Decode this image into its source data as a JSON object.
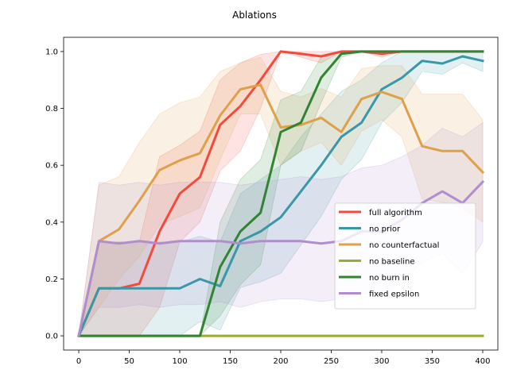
{
  "chart_data": {
    "type": "line",
    "title": "Ablations",
    "xlabel": "",
    "ylabel": "",
    "xlim": [
      -15,
      415
    ],
    "ylim": [
      -0.05,
      1.05
    ],
    "xticks": [
      0,
      50,
      100,
      150,
      200,
      250,
      300,
      350,
      400
    ],
    "yticks": [
      0.0,
      0.2,
      0.4,
      0.6,
      0.8,
      1.0
    ],
    "xtick_labels": [
      "0",
      "50",
      "100",
      "150",
      "200",
      "250",
      "300",
      "350",
      "400"
    ],
    "ytick_labels": [
      "0.0",
      "0.2",
      "0.4",
      "0.6",
      "0.8",
      "1.0"
    ],
    "grid": false,
    "legend_position": "center-right",
    "x": [
      0,
      20,
      40,
      60,
      80,
      100,
      120,
      140,
      160,
      180,
      200,
      220,
      240,
      260,
      280,
      300,
      320,
      340,
      360,
      380,
      400
    ],
    "series": [
      {
        "name": "full algorithm",
        "color": "#f44a3c",
        "values": [
          0.0,
          0.167,
          0.167,
          0.183,
          0.367,
          0.5,
          0.558,
          0.742,
          0.808,
          0.9,
          1.0,
          0.992,
          0.983,
          1.0,
          1.0,
          0.992,
          1.0,
          1.0,
          1.0,
          1.0,
          1.0
        ],
        "lower": [
          0.0,
          0.0,
          0.0,
          0.0,
          0.1,
          0.33,
          0.4,
          0.58,
          0.65,
          0.8,
          1.0,
          0.98,
          0.96,
          1.0,
          1.0,
          0.98,
          1.0,
          1.0,
          1.0,
          1.0,
          1.0
        ],
        "upper": [
          0.0,
          0.33,
          0.33,
          0.33,
          0.63,
          0.67,
          0.72,
          0.9,
          0.96,
          0.99,
          1.0,
          1.0,
          1.0,
          1.0,
          1.0,
          1.0,
          1.0,
          1.0,
          1.0,
          1.0,
          1.0
        ]
      },
      {
        "name": "no prior",
        "color": "#3a97a8",
        "values": [
          0.0,
          0.167,
          0.167,
          0.167,
          0.167,
          0.167,
          0.2,
          0.175,
          0.333,
          0.367,
          0.417,
          0.508,
          0.6,
          0.7,
          0.75,
          0.867,
          0.908,
          0.967,
          0.958,
          0.983,
          0.967
        ],
        "lower": [
          0.0,
          0.0,
          0.0,
          0.0,
          0.0,
          0.0,
          0.05,
          0.02,
          0.17,
          0.19,
          0.22,
          0.32,
          0.42,
          0.55,
          0.62,
          0.75,
          0.82,
          0.93,
          0.92,
          0.96,
          0.93
        ],
        "upper": [
          0.0,
          0.33,
          0.33,
          0.33,
          0.33,
          0.33,
          0.35,
          0.33,
          0.5,
          0.55,
          0.6,
          0.7,
          0.78,
          0.86,
          0.9,
          0.96,
          1.0,
          1.0,
          1.0,
          1.0,
          1.0
        ]
      },
      {
        "name": "no counterfactual",
        "color": "#dea04a",
        "values": [
          0.0,
          0.333,
          0.375,
          0.475,
          0.583,
          0.617,
          0.642,
          0.775,
          0.867,
          0.883,
          0.733,
          0.742,
          0.767,
          0.717,
          0.833,
          0.858,
          0.833,
          0.667,
          0.65,
          0.65,
          0.575
        ],
        "lower": [
          0.0,
          0.1,
          0.2,
          0.28,
          0.39,
          0.42,
          0.45,
          0.62,
          0.78,
          0.78,
          0.6,
          0.65,
          0.68,
          0.6,
          0.72,
          0.76,
          0.7,
          0.48,
          0.47,
          0.45,
          0.4
        ],
        "upper": [
          0.0,
          0.53,
          0.56,
          0.68,
          0.78,
          0.82,
          0.84,
          0.93,
          0.96,
          0.98,
          0.86,
          0.84,
          0.87,
          0.84,
          0.94,
          0.95,
          0.95,
          0.85,
          0.85,
          0.85,
          0.76
        ]
      },
      {
        "name": "no baseline",
        "color": "#9bab31",
        "values": [
          0.0,
          0.0,
          0.0,
          0.0,
          0.0,
          0.0,
          0.0,
          0.0,
          0.0,
          0.0,
          0.0,
          0.0,
          0.0,
          0.0,
          0.0,
          0.0,
          0.0,
          0.0,
          0.0,
          0.0,
          0.0
        ],
        "lower": [
          0.0,
          0.0,
          0.0,
          0.0,
          0.0,
          0.0,
          0.0,
          0.0,
          0.0,
          0.0,
          0.0,
          0.0,
          0.0,
          0.0,
          0.0,
          0.0,
          0.0,
          0.0,
          0.0,
          0.0,
          0.0
        ],
        "upper": [
          0.0,
          0.0,
          0.0,
          0.0,
          0.0,
          0.0,
          0.0,
          0.0,
          0.0,
          0.0,
          0.0,
          0.0,
          0.0,
          0.0,
          0.0,
          0.0,
          0.0,
          0.0,
          0.0,
          0.0,
          0.0
        ]
      },
      {
        "name": "no burn in",
        "color": "#328433",
        "values": [
          0.0,
          0.0,
          0.0,
          0.0,
          0.0,
          0.0,
          0.0,
          0.242,
          0.367,
          0.433,
          0.717,
          0.75,
          0.908,
          0.992,
          1.0,
          1.0,
          1.0,
          1.0,
          1.0,
          1.0,
          1.0
        ],
        "lower": [
          0.0,
          0.0,
          0.0,
          0.0,
          0.0,
          0.0,
          0.0,
          0.07,
          0.18,
          0.25,
          0.6,
          0.65,
          0.82,
          0.98,
          1.0,
          1.0,
          1.0,
          1.0,
          1.0,
          1.0,
          1.0
        ],
        "upper": [
          0.0,
          0.0,
          0.0,
          0.0,
          0.0,
          0.0,
          0.0,
          0.4,
          0.55,
          0.62,
          0.83,
          0.86,
          0.98,
          1.0,
          1.0,
          1.0,
          1.0,
          1.0,
          1.0,
          1.0,
          1.0
        ]
      },
      {
        "name": "fixed epsilon",
        "color": "#b08dcf",
        "values": [
          0.0,
          0.333,
          0.325,
          0.333,
          0.325,
          0.333,
          0.333,
          0.333,
          0.325,
          0.333,
          0.333,
          0.333,
          0.325,
          0.333,
          0.367,
          0.367,
          0.408,
          0.467,
          0.508,
          0.467,
          0.542
        ],
        "lower": [
          0.0,
          0.1,
          0.1,
          0.11,
          0.1,
          0.11,
          0.11,
          0.12,
          0.1,
          0.12,
          0.13,
          0.13,
          0.12,
          0.13,
          0.15,
          0.14,
          0.19,
          0.26,
          0.29,
          0.22,
          0.33
        ],
        "upper": [
          0.0,
          0.54,
          0.53,
          0.54,
          0.53,
          0.54,
          0.54,
          0.54,
          0.53,
          0.54,
          0.55,
          0.56,
          0.55,
          0.56,
          0.59,
          0.6,
          0.63,
          0.67,
          0.73,
          0.7,
          0.75
        ]
      }
    ]
  }
}
